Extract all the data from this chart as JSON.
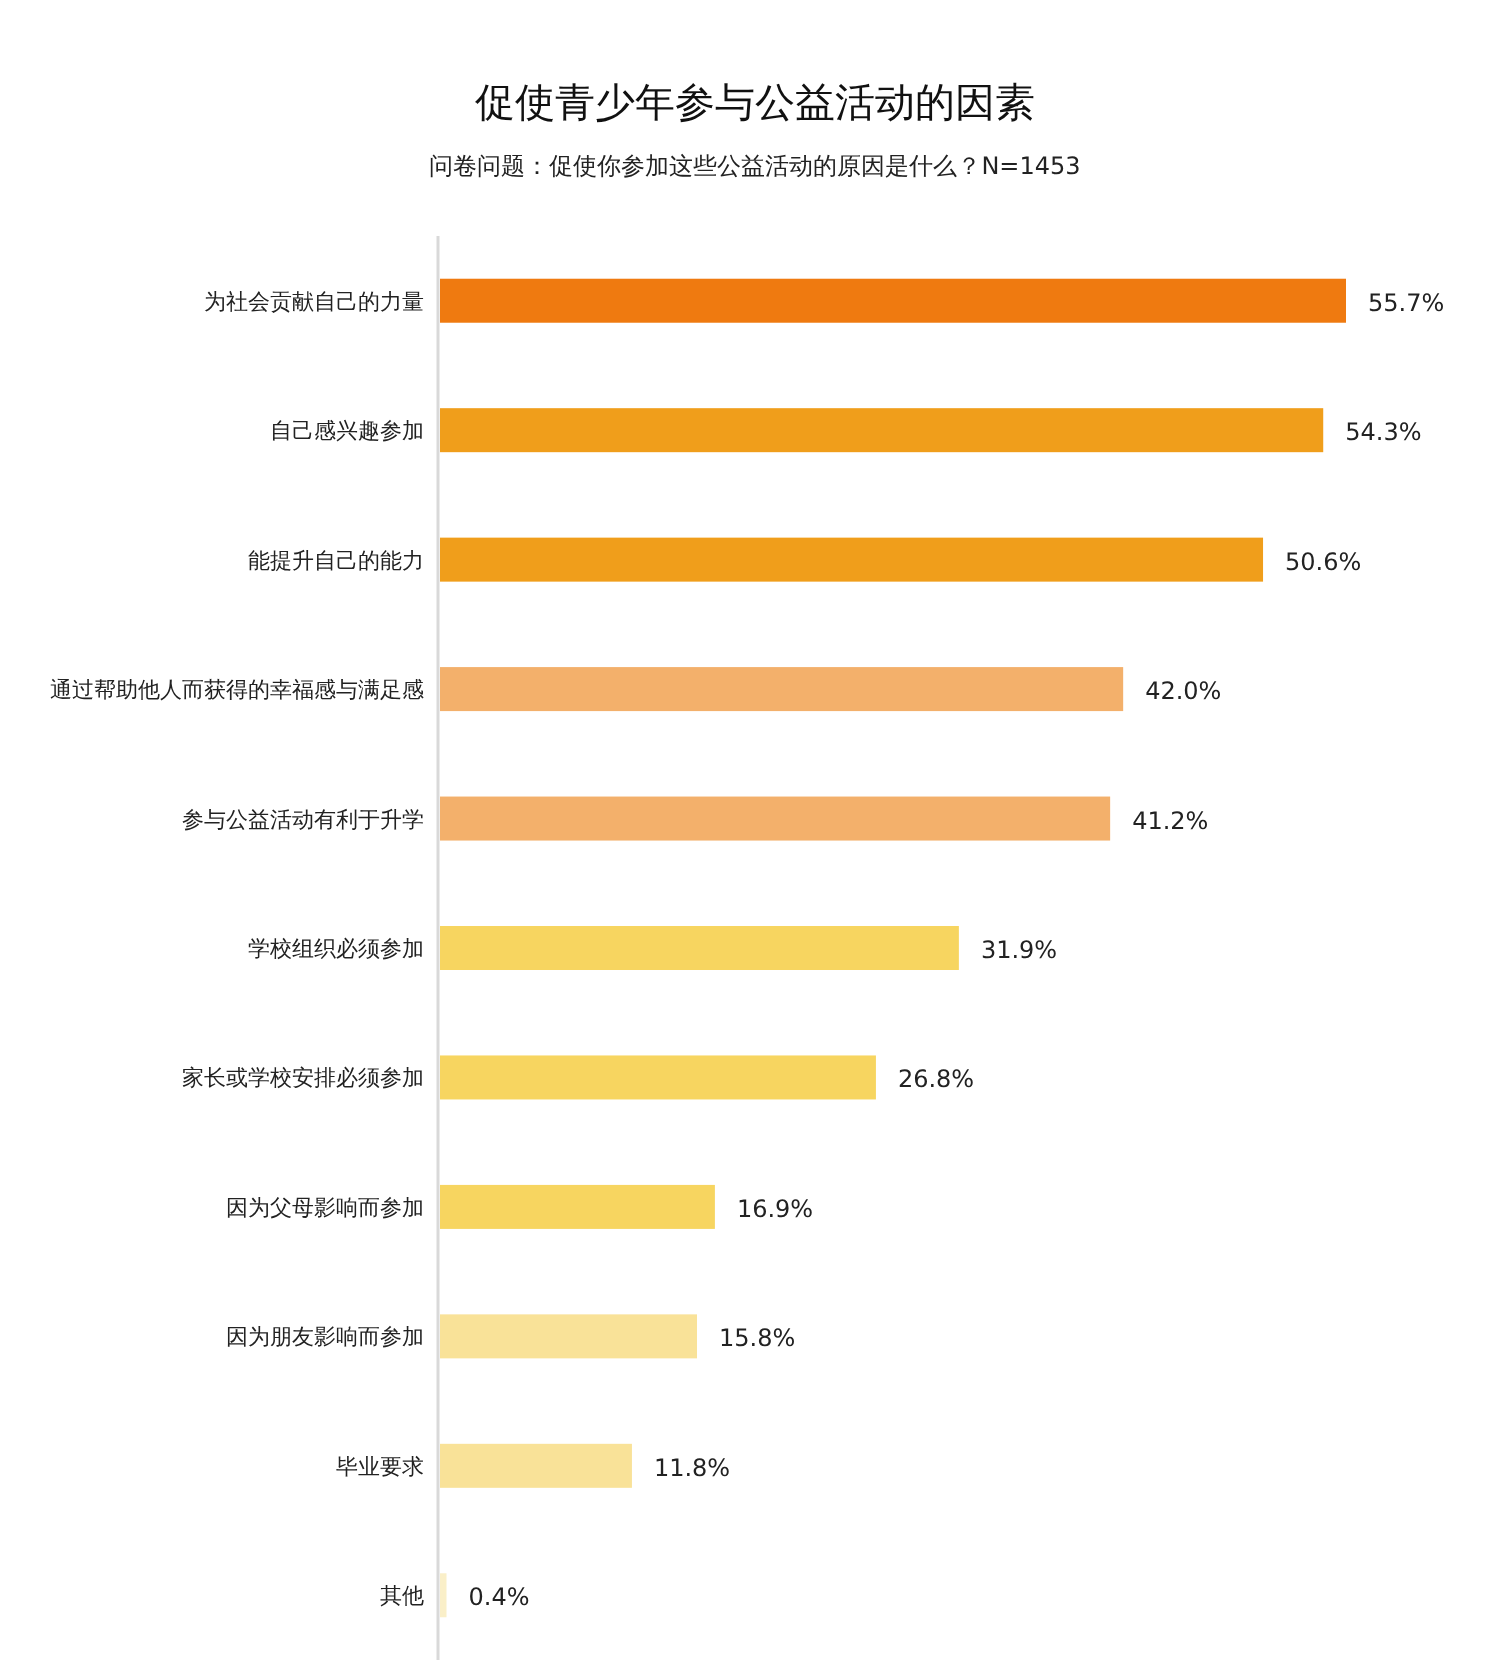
{
  "chart_data": {
    "type": "bar",
    "orientation": "horizontal",
    "title": "促使青少年参与公益活动的因素",
    "subtitle": "问卷问题：促使你参加这些公益活动的原因是什么？N=1453",
    "categories": [
      "为社会贡献自己的力量",
      "自己感兴趣参加",
      "能提升自己的能力",
      "通过帮助他人而获得的幸福感与满足感",
      "参与公益活动有利于升学",
      "学校组织必须参加",
      "家长或学校安排必须参加",
      "因为父母影响而参加",
      "因为朋友影响而参加",
      "毕业要求",
      "其他"
    ],
    "values": [
      55.7,
      54.3,
      50.6,
      42.0,
      41.2,
      31.9,
      26.8,
      16.9,
      15.8,
      11.8,
      0.4
    ],
    "value_labels": [
      "55.7%",
      "54.3%",
      "50.6%",
      "42.0%",
      "41.2%",
      "31.9%",
      "26.8%",
      "16.9%",
      "15.8%",
      "11.8%",
      "0.4%"
    ],
    "colors": [
      "#ef7a10",
      "#f09e1b",
      "#f09e1b",
      "#f3b06b",
      "#f3b06b",
      "#f7d560",
      "#f7d560",
      "#f7d560",
      "#f9e298",
      "#f9e298",
      "#faefc8"
    ]
  }
}
